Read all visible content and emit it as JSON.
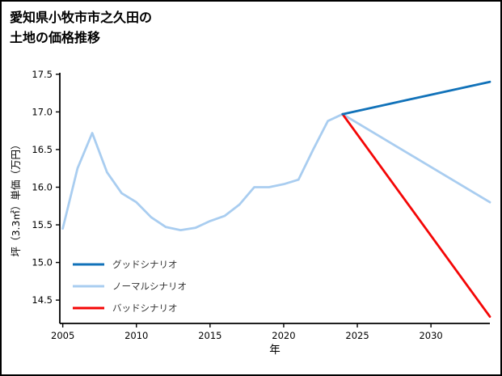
{
  "title": {
    "lines": [
      "愛知県小牧市市之久田の",
      "土地の価格推移"
    ]
  },
  "chart_data": {
    "type": "line",
    "title": "愛知県小牧市市之久田の土地の価格推移",
    "xlabel": "年",
    "ylabel": "坪（3.3㎡）単価（万円）",
    "xlim": [
      2004.8,
      2034
    ],
    "ylim": [
      14.19,
      17.52
    ],
    "xticks": [
      2005,
      2010,
      2015,
      2020,
      2025,
      2030
    ],
    "yticks": [
      14.5,
      15.0,
      15.5,
      16.0,
      16.5,
      17.0,
      17.5
    ],
    "grid": false,
    "legend_position": "lower-left",
    "axis_color": "#000000",
    "legend_text_color": "#333333",
    "series": [
      {
        "name": "グッドシナリオ",
        "color": "#1172b9",
        "x": [
          2024,
          2034
        ],
        "y": [
          16.97,
          17.4
        ]
      },
      {
        "name": "ノーマルシナリオ",
        "color": "#a9cdf0",
        "x": [
          2005,
          2006,
          2007,
          2008,
          2009,
          2010,
          2011,
          2012,
          2013,
          2014,
          2015,
          2016,
          2017,
          2018,
          2019,
          2020,
          2021,
          2022,
          2023,
          2024,
          2034
        ],
        "y": [
          15.45,
          16.25,
          16.72,
          16.2,
          15.92,
          15.8,
          15.6,
          15.47,
          15.43,
          15.46,
          15.55,
          15.62,
          15.77,
          16.0,
          16.0,
          16.04,
          16.1,
          16.5,
          16.88,
          16.97,
          15.8
        ]
      },
      {
        "name": "バッドシナリオ",
        "color": "#f40606",
        "x": [
          2024,
          2034
        ],
        "y": [
          16.97,
          14.28
        ]
      }
    ]
  }
}
